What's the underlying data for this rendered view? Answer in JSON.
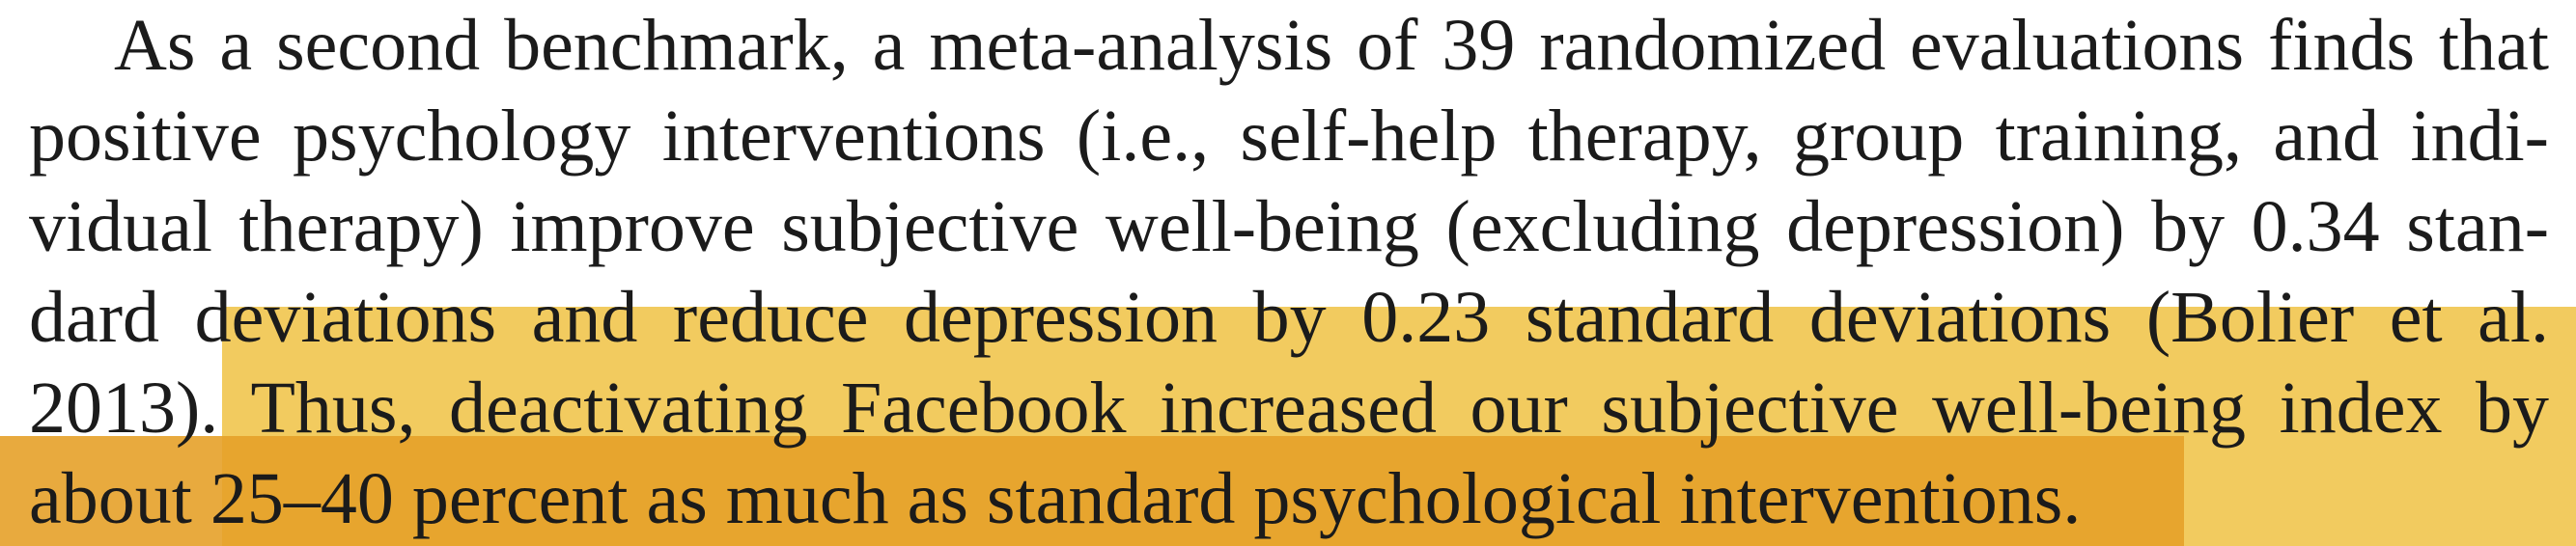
{
  "document": {
    "lines": [
      "As a second benchmark, a meta-analysis of 39 randomized evaluations finds that",
      "positive psychology interventions (i.e., self-help therapy, group training, and indi-",
      "vidual therapy) improve subjective well-being (excluding depression) by 0.34 stan-",
      "dard deviations and reduce depression by 0.23 standard deviations (Bolier et al.",
      "2013). Thus, deactivating Facebook increased our subjective well-being index by",
      "about 25–40 percent as much as standard psychological interventions."
    ]
  },
  "colors": {
    "highlight": "#f0c243",
    "highlight_overlap": "#e5a129",
    "text": "#1b1b1b",
    "background": "#ffffff"
  }
}
